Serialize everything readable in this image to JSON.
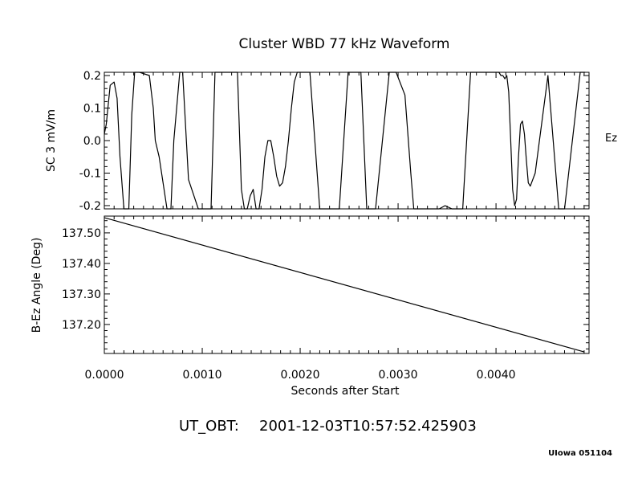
{
  "title": "Cluster WBD 77 kHz Waveform",
  "footer": {
    "ut_obt_label": "UT_OBT:",
    "ut_obt_value": "2001-12-03T10:57:52.425903",
    "credit": "UIowa 051104"
  },
  "chart_data": [
    {
      "type": "line",
      "panel": "top",
      "ylabel": "SC 3 mV/m",
      "right_label": "Ez",
      "ylim": [
        -0.21,
        0.21
      ],
      "xlim": [
        0.0,
        0.00495
      ],
      "yticks": [
        0.2,
        0.1,
        0.0,
        -0.1,
        -0.2
      ],
      "ytick_labels": [
        "0.2",
        "0.1",
        "0.0",
        "-0.1",
        "-0.2"
      ],
      "grid": false,
      "series": [
        {
          "x": [
            0.0,
            2e-05,
            6e-05,
            0.0001,
            0.00013,
            0.00016,
            0.0002,
            0.00025,
            0.00028,
            0.00031,
            0.00036,
            0.00046,
            0.0005,
            0.00052,
            0.00056,
            0.00064,
            0.00068,
            0.00071,
            0.00077,
            0.0008,
            0.00086,
            0.00096,
            0.00109,
            0.00113,
            0.00136,
            0.0014,
            0.00143,
            0.00146,
            0.00149,
            0.00152,
            0.00155,
            0.00158,
            0.00161,
            0.00164,
            0.00167,
            0.0017,
            0.00173,
            0.00176,
            0.00179,
            0.00182,
            0.00185,
            0.00188,
            0.00191,
            0.00194,
            0.00197,
            0.0021,
            0.0022,
            0.0024,
            0.00249,
            0.00262,
            0.00268,
            0.00277,
            0.00291,
            0.00298,
            0.00307,
            0.00313,
            0.00316,
            0.00321,
            0.00327,
            0.00342,
            0.00348,
            0.00355,
            0.00366,
            0.00374,
            0.00382,
            0.00393,
            0.00403,
            0.00405,
            0.00407,
            0.00409,
            0.00411,
            0.00413,
            0.00415,
            0.00417,
            0.00419,
            0.00421,
            0.00423,
            0.00425,
            0.00427,
            0.00429,
            0.00431,
            0.00433,
            0.00435,
            0.0044,
            0.00453,
            0.00464,
            0.0047,
            0.00486,
            0.00488,
            0.00491
          ],
          "y": [
            0.02,
            0.05,
            0.17,
            0.18,
            0.13,
            -0.05,
            -0.21,
            -0.21,
            0.08,
            0.21,
            0.21,
            0.2,
            0.1,
            0.0,
            -0.05,
            -0.21,
            -0.21,
            0.0,
            0.21,
            0.21,
            -0.12,
            -0.21,
            -0.21,
            0.21,
            0.21,
            -0.15,
            -0.21,
            -0.21,
            -0.17,
            -0.15,
            -0.21,
            -0.21,
            -0.15,
            -0.05,
            0.0,
            0.0,
            -0.05,
            -0.11,
            -0.14,
            -0.13,
            -0.08,
            0.0,
            0.1,
            0.18,
            0.21,
            0.21,
            -0.21,
            -0.21,
            0.21,
            0.21,
            -0.21,
            -0.21,
            0.21,
            0.21,
            0.14,
            -0.1,
            -0.21,
            -0.21,
            -0.21,
            -0.21,
            -0.2,
            -0.21,
            -0.21,
            0.21,
            0.21,
            0.21,
            0.21,
            0.2,
            0.2,
            0.19,
            0.2,
            0.15,
            0.0,
            -0.15,
            -0.2,
            -0.18,
            -0.05,
            0.05,
            0.06,
            0.02,
            -0.06,
            -0.13,
            -0.14,
            -0.1,
            0.2,
            -0.21,
            -0.21,
            0.21,
            0.21,
            0.21
          ]
        }
      ]
    },
    {
      "type": "line",
      "panel": "bottom",
      "xlabel": "Seconds after Start",
      "ylabel": "B-Ez Angle (Deg)",
      "xlim": [
        0.0,
        0.00495
      ],
      "ylim": [
        137.105,
        137.555
      ],
      "xticks": [
        0.0,
        0.001,
        0.002,
        0.003,
        0.004
      ],
      "xtick_labels": [
        "0.0000",
        "0.0010",
        "0.0020",
        "0.0030",
        "0.0040"
      ],
      "yticks": [
        137.5,
        137.4,
        137.3,
        137.2
      ],
      "ytick_labels": [
        "137.50",
        "137.40",
        "137.30",
        "137.20"
      ],
      "grid": false,
      "series": [
        {
          "x": [
            0.0,
            0.0049
          ],
          "y": [
            137.55,
            137.11
          ]
        }
      ]
    }
  ]
}
